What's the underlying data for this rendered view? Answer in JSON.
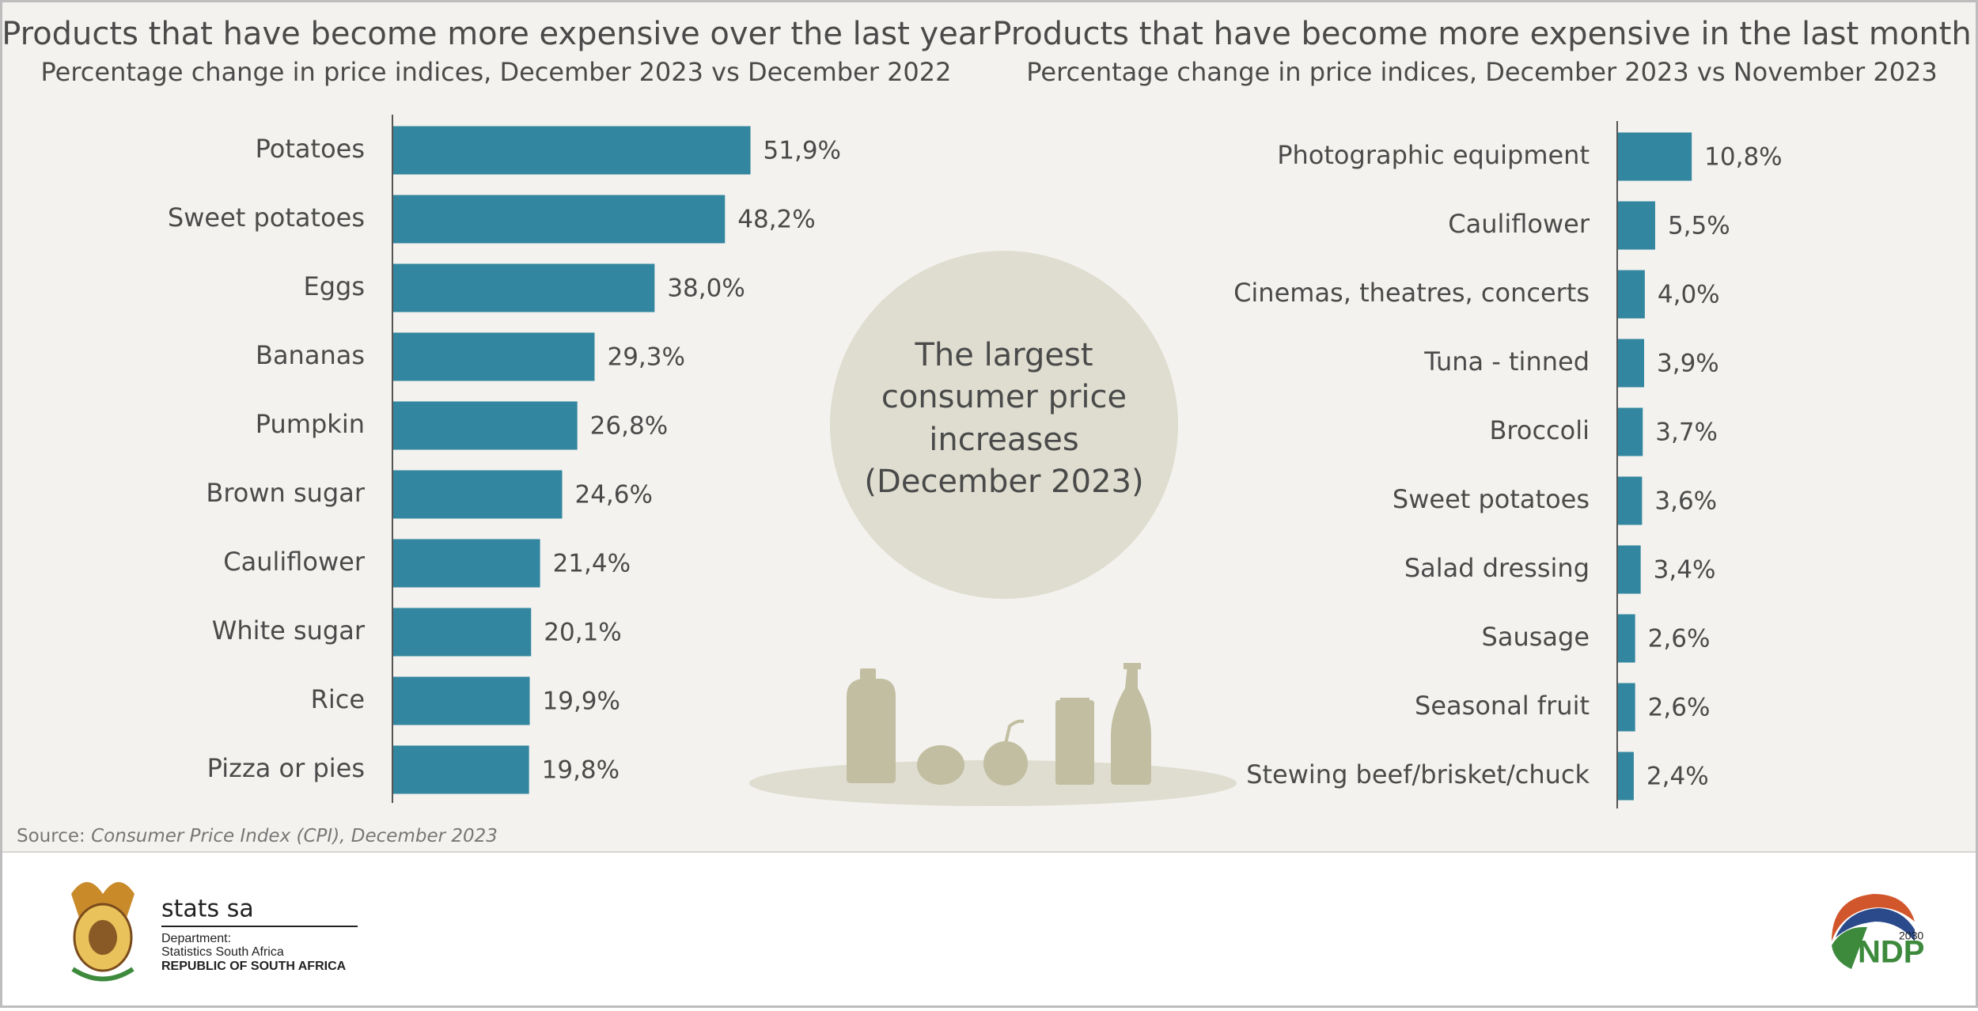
{
  "chart_data": [
    {
      "type": "bar",
      "orientation": "horizontal",
      "title": "Products that have become more expensive over the last year",
      "subtitle": "Percentage change in price indices, December 2023 vs December 2022",
      "categories": [
        "Potatoes",
        "Sweet potatoes",
        "Eggs",
        "Bananas",
        "Pumpkin",
        "Brown sugar",
        "Cauliflower",
        "White sugar",
        "Rice",
        "Pizza or pies"
      ],
      "values": [
        51.9,
        48.2,
        38.0,
        29.3,
        26.8,
        24.6,
        21.4,
        20.1,
        19.9,
        19.8
      ],
      "value_labels": [
        "51,9%",
        "48,2%",
        "38,0%",
        "29,3%",
        "26,8%",
        "24,6%",
        "21,4%",
        "20,1%",
        "19,9%",
        "19,8%"
      ],
      "color": "#33869f"
    },
    {
      "type": "bar",
      "orientation": "horizontal",
      "title": "Products that have become more expensive in the last month",
      "subtitle": "Percentage change in price indices, December 2023 vs November 2023",
      "categories": [
        "Photographic equipment",
        "Cauliflower",
        "Cinemas, theatres, concerts",
        "Tuna - tinned",
        "Broccoli",
        "Sweet potatoes",
        "Salad dressing",
        "Sausage",
        "Seasonal fruit",
        "Stewing beef/brisket/chuck"
      ],
      "values": [
        10.8,
        5.5,
        4.0,
        3.9,
        3.7,
        3.6,
        3.4,
        2.6,
        2.6,
        2.4
      ],
      "value_labels": [
        "10,8%",
        "5,5%",
        "4,0%",
        "3,9%",
        "3,7%",
        "3,6%",
        "3,4%",
        "2,6%",
        "2,6%",
        "2,4%"
      ],
      "color": "#33869f"
    }
  ],
  "center_text": [
    "The largest",
    "consumer price",
    "increases",
    "(December 2023)"
  ],
  "source": {
    "label": "Source:",
    "text": "Consumer Price Index (CPI), December 2023"
  },
  "footer": {
    "brand": "stats sa",
    "department": "Department:",
    "organisation": "Statistics South Africa",
    "country": "REPUBLIC OF SOUTH AFRICA",
    "ndp": "NDP",
    "ndp_year": "2030"
  }
}
